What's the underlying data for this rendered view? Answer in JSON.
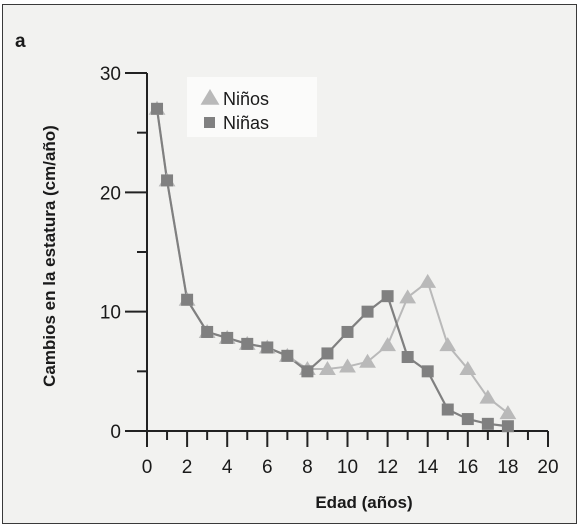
{
  "figure": {
    "panel_label": "a"
  },
  "chart_data": {
    "type": "line",
    "title": "",
    "xlabel": "Edad (años)",
    "ylabel": "Cambios en la estatura (cm/año)",
    "xlim": [
      0,
      20
    ],
    "ylim": [
      0,
      30
    ],
    "x_ticks": [
      0,
      2,
      4,
      6,
      8,
      10,
      12,
      14,
      16,
      18,
      20
    ],
    "y_ticks": [
      0,
      10,
      20,
      30
    ],
    "grid": false,
    "legend_position": "top-left",
    "series": [
      {
        "name": "Niños",
        "marker": "triangle",
        "color": "#b9b9b9",
        "x": [
          0.5,
          1,
          2,
          3,
          4,
          5,
          6,
          7,
          8,
          9,
          10,
          11,
          12,
          13,
          14,
          15,
          16,
          17,
          18
        ],
        "y": [
          27,
          21,
          11,
          8.3,
          7.8,
          7.3,
          7.0,
          6.3,
          5.2,
          5.2,
          5.4,
          5.8,
          7.2,
          11.2,
          12.5,
          7.2,
          5.2,
          2.8,
          1.5
        ]
      },
      {
        "name": "Niñas",
        "marker": "square",
        "color": "#808080",
        "x": [
          0.5,
          1,
          2,
          3,
          4,
          5,
          6,
          7,
          8,
          9,
          10,
          11,
          12,
          13,
          14,
          15,
          16,
          17,
          18
        ],
        "y": [
          27,
          21,
          11,
          8.3,
          7.8,
          7.3,
          7.0,
          6.3,
          5.0,
          6.5,
          8.3,
          10.0,
          11.3,
          6.2,
          5.0,
          1.8,
          1.0,
          0.6,
          0.4
        ]
      }
    ]
  }
}
